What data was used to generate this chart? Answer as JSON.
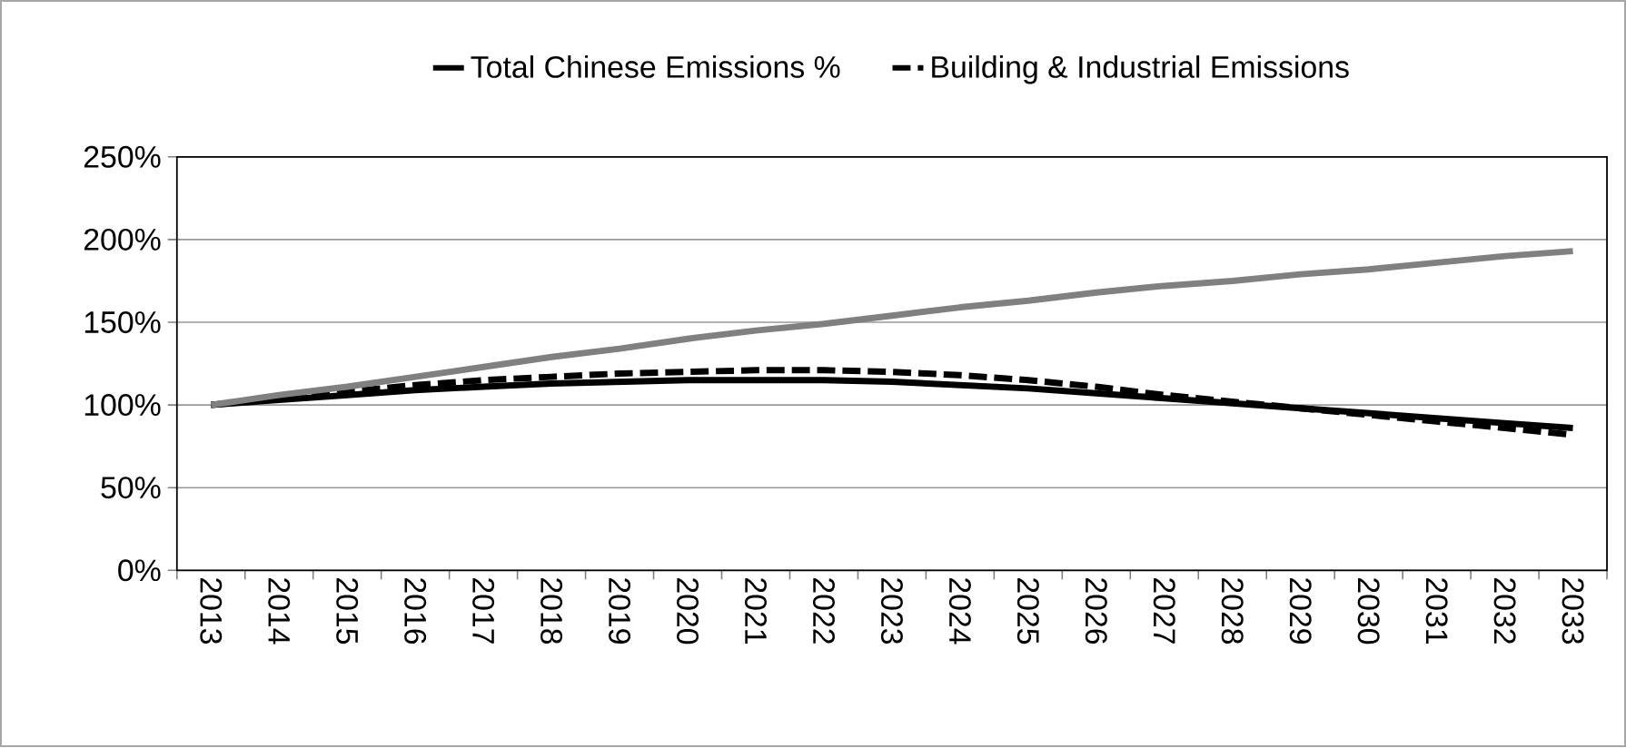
{
  "chart_data": {
    "type": "line",
    "categories": [
      "2013",
      "2014",
      "2015",
      "2016",
      "2017",
      "2018",
      "2019",
      "2020",
      "2021",
      "2022",
      "2023",
      "2024",
      "2025",
      "2026",
      "2027",
      "2028",
      "2029",
      "2030",
      "2031",
      "2032",
      "2033"
    ],
    "series": [
      {
        "name": "Total Chinese Emissions %",
        "color": "#000000",
        "line_style": "solid",
        "values": [
          100,
          103,
          106,
          109,
          111,
          113,
          114,
          115,
          115,
          115,
          114,
          112,
          110,
          107,
          104,
          101,
          98,
          95,
          92,
          89,
          86
        ]
      },
      {
        "name": "Building & Industrial Emissions",
        "color": "#000000",
        "line_style": "dashed",
        "values": [
          100,
          104,
          108,
          112,
          115,
          117,
          119,
          120,
          121,
          121,
          120,
          118,
          115,
          111,
          106,
          102,
          98,
          94,
          90,
          86,
          82
        ]
      },
      {
        "color": "#808080",
        "line_style": "solid",
        "values": [
          100,
          106,
          111,
          117,
          123,
          129,
          134,
          140,
          145,
          149,
          154,
          159,
          163,
          168,
          172,
          175,
          179,
          182,
          186,
          190,
          193
        ]
      }
    ],
    "ylim": [
      0,
      250
    ],
    "yticks": [
      {
        "value": 0,
        "label": "0%"
      },
      {
        "value": 50,
        "label": "50%"
      },
      {
        "value": 100,
        "label": "100%"
      },
      {
        "value": 150,
        "label": "150%"
      },
      {
        "value": 200,
        "label": "200%"
      },
      {
        "value": 250,
        "label": "250%"
      }
    ],
    "grid": "y",
    "legend": "top",
    "marker": "none"
  }
}
